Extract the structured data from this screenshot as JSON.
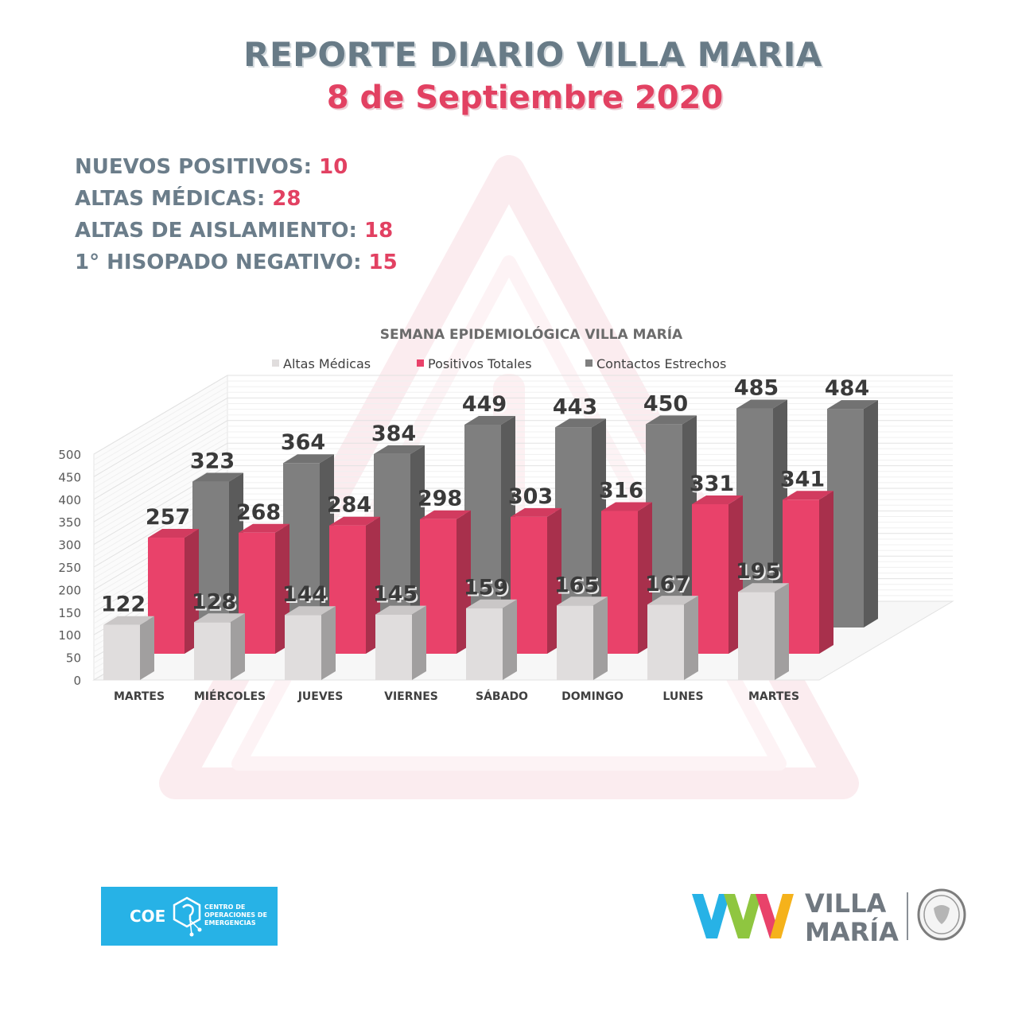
{
  "header": {
    "title": "REPORTE DIARIO VILLA MARIA",
    "date": "8 de Septiembre 2020"
  },
  "stats": [
    {
      "label": "NUEVOS POSITIVOS:",
      "value": "10"
    },
    {
      "label": "ALTAS MÉDICAS:",
      "value": "28"
    },
    {
      "label": "ALTAS DE AISLAMIENTO:",
      "value": "18"
    },
    {
      "label": "1° HISOPADO NEGATIVO:",
      "value": "15"
    }
  ],
  "chart_data": {
    "type": "bar",
    "title": "SEMANA EPIDEMIOLÓGICA VILLA MARÍA",
    "categories": [
      "MARTES",
      "MIÉRCOLES",
      "JUEVES",
      "VIERNES",
      "SÁBADO",
      "DOMINGO",
      "LUNES",
      "MARTES"
    ],
    "series": [
      {
        "name": "Altas Médicas",
        "color": "#e0dddd",
        "values": [
          122,
          128,
          144,
          145,
          159,
          165,
          167,
          195
        ]
      },
      {
        "name": "Positivos Totales",
        "color": "#e9426a",
        "values": [
          257,
          268,
          284,
          298,
          303,
          316,
          331,
          341
        ]
      },
      {
        "name": "Contactos Estrechos",
        "color": "#7f7f7f",
        "values": [
          323,
          364,
          384,
          449,
          443,
          450,
          485,
          484
        ]
      }
    ],
    "y_ticks": [
      "0",
      "50",
      "100",
      "150",
      "200",
      "250",
      "300",
      "350",
      "400",
      "450",
      "500"
    ],
    "ylim": [
      0,
      500
    ],
    "legend_position": "top",
    "grid": true,
    "style": "3d-clustered-column"
  },
  "logos": {
    "coe_short": "COE",
    "coe_full": "CENTRO DE OPERACIONES DE EMERGENCIAS",
    "vm_line1": "VILLA",
    "vm_line2": "MARÍA"
  }
}
